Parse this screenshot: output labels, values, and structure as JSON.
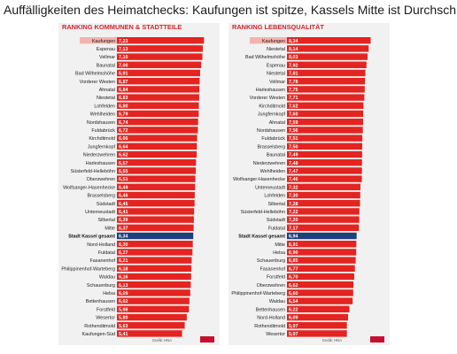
{
  "headline": "Auffälligkeiten des Heimatchecks: Kaufungen ist spitze, Kassels Mitte ist Durchschnitt",
  "colors": {
    "bar": "#e32420",
    "highlight_bar": "#1d3f7a",
    "title_text": "#d7232a",
    "label_highlight_bg": "#f5b3ad",
    "panel_bg": "#f1f1f1"
  },
  "chart_data": [
    {
      "type": "bar",
      "orientation": "horizontal",
      "title": "RANKING KOMMUNEN & STADTTEILE",
      "source": "Grafik: HNA",
      "highlight_first": "Kaufungen",
      "highlight_average": "Stadt Kassel gesamt",
      "xlim": [
        0,
        7.5
      ],
      "categories": [
        "Kaufungen",
        "Espenau",
        "Vellmar",
        "Baunatal",
        "Bad Wilhelmshöhe",
        "Vorderer Westen",
        "Ahnatal",
        "Niestetal",
        "Lohfelden",
        "Wehlheiden",
        "Nordshausen",
        "Fuldabrück",
        "Kirchditmold",
        "Jungfernkopf",
        "Niederzwehren",
        "Harleshausen",
        "Süsterfeld-Helleböhn",
        "Oberzwehren",
        "Wolfsanger-Hasenhecke",
        "Brasselsberg",
        "Südstadt",
        "Unterneustadt",
        "Silbertal",
        "Mitte",
        "Stadt Kassel gesamt",
        "Nord-Holland",
        "Fuldatal",
        "Fasanenhof",
        "Philippinenhof-Warteberg",
        "Waldau",
        "Schauenburg",
        "Helsa",
        "Bettenhausen",
        "Forstfeld",
        "Wesertor",
        "Rothenditmold",
        "Kaufungen-Süd"
      ],
      "values": [
        7.23,
        7.13,
        7.1,
        7.0,
        6.91,
        6.87,
        6.84,
        6.83,
        6.8,
        6.79,
        6.74,
        6.72,
        6.66,
        6.64,
        6.62,
        6.57,
        6.55,
        6.51,
        6.49,
        6.46,
        6.45,
        6.41,
        6.39,
        6.37,
        6.34,
        6.3,
        6.27,
        6.21,
        6.18,
        6.16,
        6.13,
        6.09,
        6.02,
        5.98,
        5.8,
        5.63,
        5.41
      ]
    },
    {
      "type": "bar",
      "orientation": "horizontal",
      "title": "RANKING LEBENSQUALITÄT",
      "source": "Grafik: HNA",
      "highlight_first": "Kaufungen",
      "highlight_average": "Stadt Kassel gesamt",
      "xlim": [
        0,
        9.0
      ],
      "categories": [
        "Kaufungen",
        "Niestetal",
        "Bad Wilhelmshöhe",
        "Espenau",
        "Niestetal",
        "Vellmar",
        "Harleshausen",
        "Vorderer Westen",
        "Kirchditmold",
        "Jungfernkopf",
        "Ahnatal",
        "Nordshausen",
        "Fuldabrück",
        "Brasselsberg",
        "Baunatal",
        "Niederzwehren",
        "Wehlheiden",
        "Wolfsanger-Hasenhecke",
        "Unterneustadt",
        "Lohfelden",
        "Silbertal",
        "Süsterfeld-Helleböhn",
        "Südstadt",
        "Fuldatal",
        "Stadt Kassel gesamt",
        "Mitte",
        "Helsa",
        "Schauenburg",
        "Fasanenhof",
        "Forstfeld",
        "Oberzwehren",
        "Philippinenhof-Warteberg",
        "Waldau",
        "Bettenhausen",
        "Nord-Holland",
        "Rothenditmold",
        "Wesertor"
      ],
      "values": [
        8.34,
        8.14,
        8.03,
        7.92,
        7.81,
        7.78,
        7.75,
        7.71,
        7.62,
        7.6,
        7.59,
        7.56,
        7.51,
        7.5,
        7.49,
        7.48,
        7.47,
        7.46,
        7.32,
        7.3,
        7.28,
        7.22,
        7.2,
        7.17,
        6.94,
        6.91,
        6.9,
        6.85,
        6.77,
        6.7,
        6.62,
        6.6,
        6.54,
        6.22,
        6.09,
        5.97,
        5.97
      ]
    }
  ]
}
